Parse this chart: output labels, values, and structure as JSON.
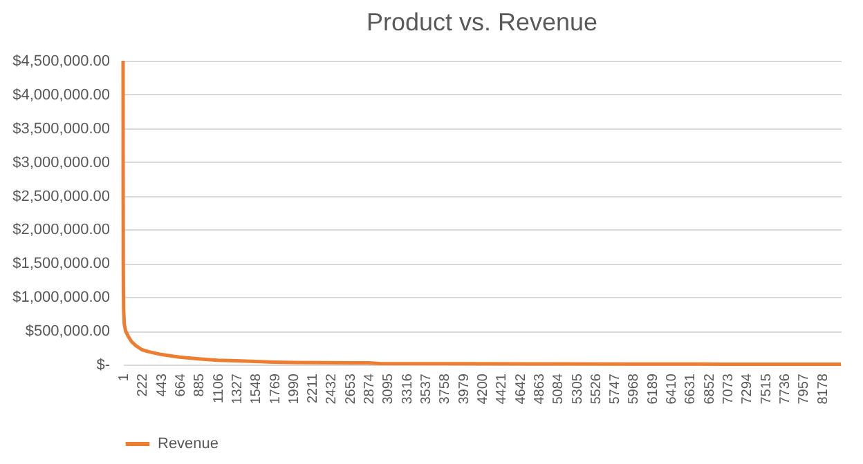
{
  "chart_data": {
    "type": "line",
    "title": "Product vs. Revenue",
    "x": [
      1,
      2,
      3,
      5,
      8,
      15,
      30,
      60,
      100,
      150,
      222,
      300,
      443,
      664,
      885,
      1106,
      1327,
      1548,
      1769,
      2000,
      2874,
      3000,
      4000,
      5000,
      6000,
      7000,
      8000,
      8400
    ],
    "series": [
      {
        "name": "Revenue",
        "color": "#ed7d31",
        "values": [
          4500000,
          2500000,
          1500000,
          1100000,
          800000,
          600000,
          500000,
          420000,
          340000,
          280000,
          220000,
          190000,
          150000,
          110000,
          85000,
          65000,
          55000,
          45000,
          35000,
          30000,
          25000,
          15000,
          12000,
          10000,
          8000,
          6000,
          5000,
          4000
        ]
      }
    ],
    "xlim": [
      1,
      8400
    ],
    "xticks": [
      1,
      222,
      443,
      664,
      885,
      1106,
      1327,
      1548,
      1769,
      1990,
      2211,
      2432,
      2653,
      2874,
      3095,
      3316,
      3537,
      3758,
      3979,
      4200,
      4421,
      4642,
      4863,
      5084,
      5305,
      5526,
      5747,
      5968,
      6189,
      6410,
      6631,
      6852,
      7073,
      7294,
      7515,
      7736,
      7957,
      8178
    ],
    "ylim": [
      0,
      4500000
    ],
    "yticks": [
      {
        "value": 0,
        "label": "$-"
      },
      {
        "value": 500000,
        "label": "$500,000.00"
      },
      {
        "value": 1000000,
        "label": "$1,000,000.00"
      },
      {
        "value": 1500000,
        "label": "$1,500,000.00"
      },
      {
        "value": 2000000,
        "label": "$2,000,000.00"
      },
      {
        "value": 2500000,
        "label": "$2,500,000.00"
      },
      {
        "value": 3000000,
        "label": "$3,000,000.00"
      },
      {
        "value": 3500000,
        "label": "$3,500,000.00"
      },
      {
        "value": 4000000,
        "label": "$4,000,000.00"
      },
      {
        "value": 4500000,
        "label": "$4,500,000.00"
      }
    ],
    "grid": "y",
    "legend": "bottom",
    "line_style": "solid",
    "marker": "none"
  }
}
